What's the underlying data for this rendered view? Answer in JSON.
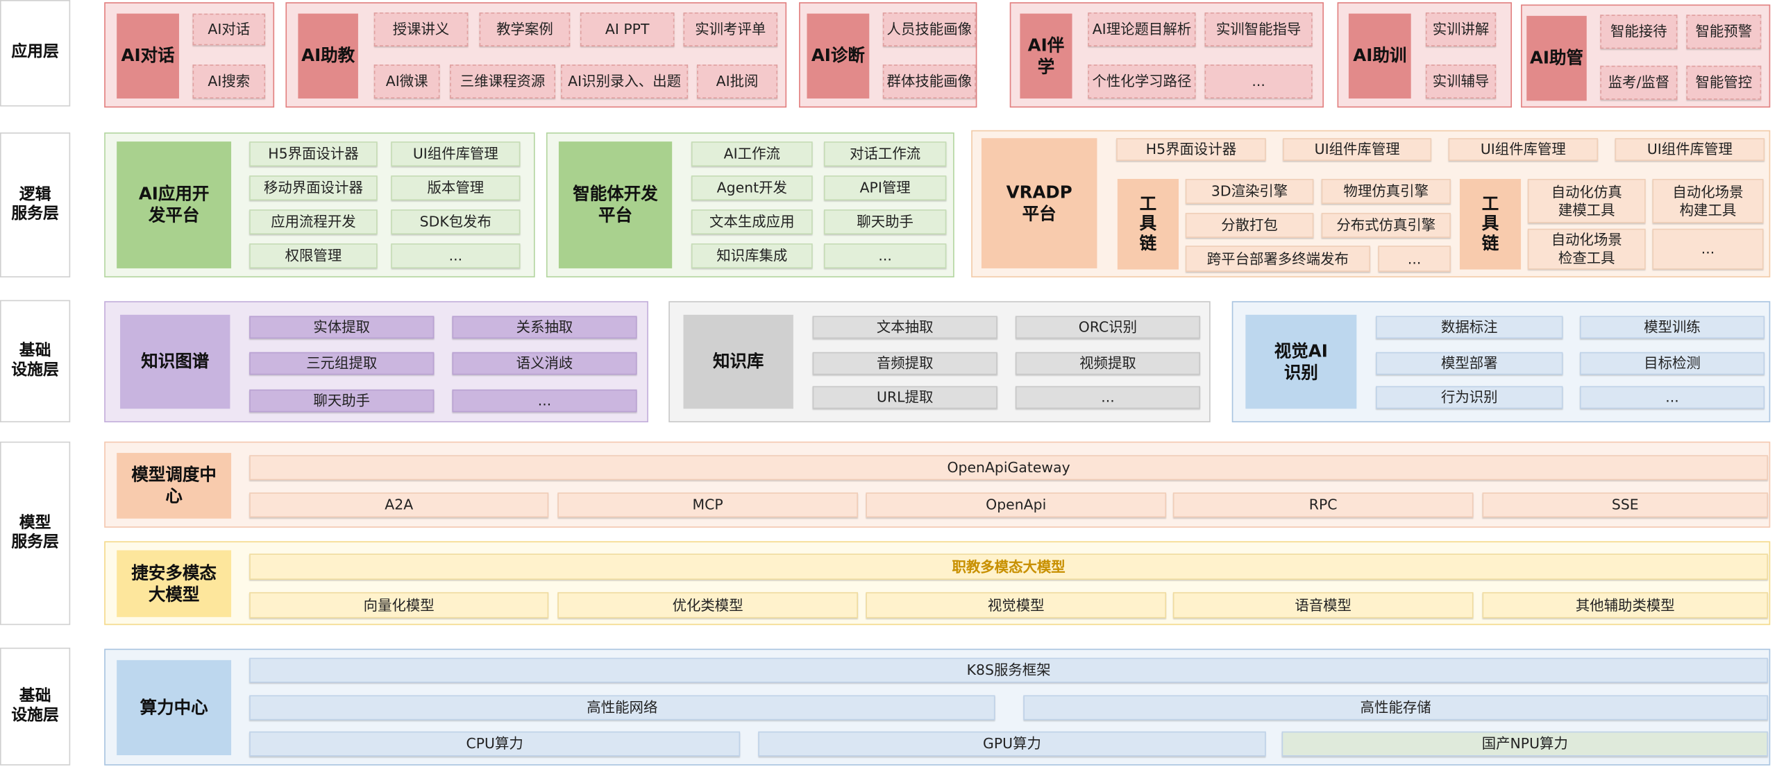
{
  "colors": {
    "app": "#e28a8a",
    "logic": "#a9d18e",
    "vradp": "#f8cbad",
    "kg": "#c8b4df",
    "kb": "#d0d0d0",
    "vision": "#bdd7ee",
    "sched": "#f8cbad",
    "model": "#fde69c",
    "compute": "#bdd7ee",
    "highlight": "#c89000"
  },
  "layers": {
    "app": "应用层",
    "logic": "逻辑\n服务层",
    "infra1": "基础\n设施层",
    "model": "模型\n服务层",
    "infra2": "基础\n设施层"
  },
  "app": {
    "dialog": {
      "title": "AI对话",
      "items": [
        "AI对话",
        "AI搜索"
      ]
    },
    "assist": {
      "title": "AI助教",
      "items": [
        "授课讲义",
        "教学案例",
        "AI PPT",
        "实训考评单",
        "AI微课",
        "三维课程资源",
        "AI识别录入、出题",
        "AI批阅"
      ]
    },
    "diagnose": {
      "title": "AI诊断",
      "items": [
        "人员技能画像",
        "群体技能画像"
      ]
    },
    "study": {
      "title": "AI伴学",
      "items": [
        "AI理论题目解析",
        "实训智能指导",
        "个性化学习路径",
        "..."
      ]
    },
    "train": {
      "title": "AI助训",
      "items": [
        "实训讲解",
        "实训辅导"
      ]
    },
    "manage": {
      "title": "AI助管",
      "items": [
        "智能接待",
        "智能预警",
        "监考/监督",
        "智能管控"
      ]
    }
  },
  "logic": {
    "appdev": {
      "title": "AI应用开\n发平台",
      "items": [
        "H5界面设计器",
        "UI组件库管理",
        "移动界面设计器",
        "版本管理",
        "应用流程开发",
        "SDK包发布",
        "权限管理",
        "..."
      ]
    },
    "agent": {
      "title": "智能体开发\n平台",
      "items": [
        "AI工作流",
        "对话工作流",
        "Agent开发",
        "API管理",
        "文本生成应用",
        "聊天助手",
        "知识库集成",
        "..."
      ]
    },
    "vradp": {
      "title": "VRADP\n平台",
      "top": [
        "H5界面设计器",
        "UI组件库管理",
        "UI组件库管理",
        "UI组件库管理"
      ],
      "chain1": "工\n具\n链",
      "chain1_items": [
        "3D渲染引擎",
        "物理仿真引擎",
        "分散打包",
        "分布式仿真引擎",
        "跨平台部署多终端发布",
        "..."
      ],
      "chain2": "工\n具\n链",
      "chain2_items": [
        "自动化仿真\n建模工具",
        "自动化场景\n构建工具",
        "自动化场景\n检查工具",
        "..."
      ]
    }
  },
  "infra": {
    "kg": {
      "title": "知识图谱",
      "items": [
        "实体提取",
        "关系抽取",
        "三元组提取",
        "语义消歧",
        "聊天助手",
        "..."
      ]
    },
    "kb": {
      "title": "知识库",
      "items": [
        "文本抽取",
        "ORC识别",
        "音频提取",
        "视频提取",
        "URL提取",
        "..."
      ]
    },
    "vision": {
      "title": "视觉AI\n识别",
      "items": [
        "数据标注",
        "模型训练",
        "模型部署",
        "目标检测",
        "行为识别",
        "..."
      ]
    }
  },
  "model": {
    "sched": {
      "title": "模型调度中\n心",
      "gateway": "OpenApiGateway",
      "items": [
        "A2A",
        "MCP",
        "OpenApi",
        "RPC",
        "SSE"
      ]
    },
    "llm": {
      "title": "捷安多模态\n大模型",
      "main": "职教多模态大模型",
      "items": [
        "向量化模型",
        "优化类模型",
        "视觉模型",
        "语音模型",
        "其他辅助类模型"
      ]
    }
  },
  "compute": {
    "title": "算力中心",
    "k8s": "K8S服务框架",
    "network": "高性能网络",
    "storage": "高性能存储",
    "cpu": "CPU算力",
    "gpu": "GPU算力",
    "npu": "国产NPU算力"
  }
}
